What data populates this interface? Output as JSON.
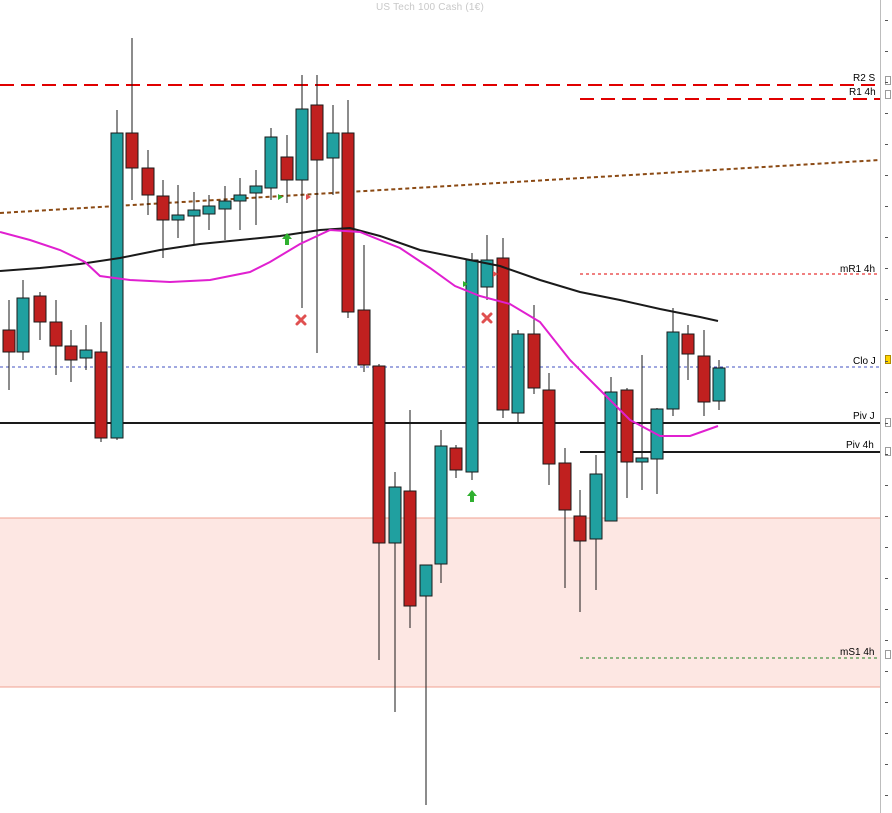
{
  "window": {
    "title": "US Tech 100 Cash (1€)"
  },
  "colors": {
    "bull": "#20a0a0",
    "bear": "#c0201f",
    "candle_outline": "#1a1a1a",
    "wick": "#1a1a1a",
    "ma_fast": "#e020d0",
    "ma_slow": "#1a1a1a",
    "pivot_red": "#e00000",
    "trend_brown": "#8b4a14",
    "zone_fill": "#fde7e3",
    "zone_border": "#f0a090",
    "close_blue": "#4050c0",
    "support_green": "#208020",
    "signal_green": "#30b030",
    "signal_red": "#e05050"
  },
  "levels": [
    {
      "label": "R2 S",
      "color": "#e00000",
      "style": "dashed"
    },
    {
      "label": "R1 4h",
      "color": "#e00000",
      "style": "dashed"
    },
    {
      "label": "mR1 4h",
      "color": "#e00000",
      "style": "dotted"
    },
    {
      "label": "Clo J",
      "color": "#4050c0",
      "style": "dotted"
    },
    {
      "label": "Piv J",
      "color": "#1a1a1a",
      "style": "solid"
    },
    {
      "label": "Piv 4h",
      "color": "#1a1a1a",
      "style": "solid"
    },
    {
      "label": "mS1 4h",
      "color": "#208020",
      "style": "dotted"
    }
  ],
  "signals": [
    {
      "type": "up-arrow",
      "icon": "up-arrow-icon"
    },
    {
      "type": "up-arrow",
      "icon": "up-arrow-icon"
    },
    {
      "type": "sell-cross",
      "icon": "cross-icon"
    },
    {
      "type": "sell-cross",
      "icon": "cross-icon"
    }
  ]
}
